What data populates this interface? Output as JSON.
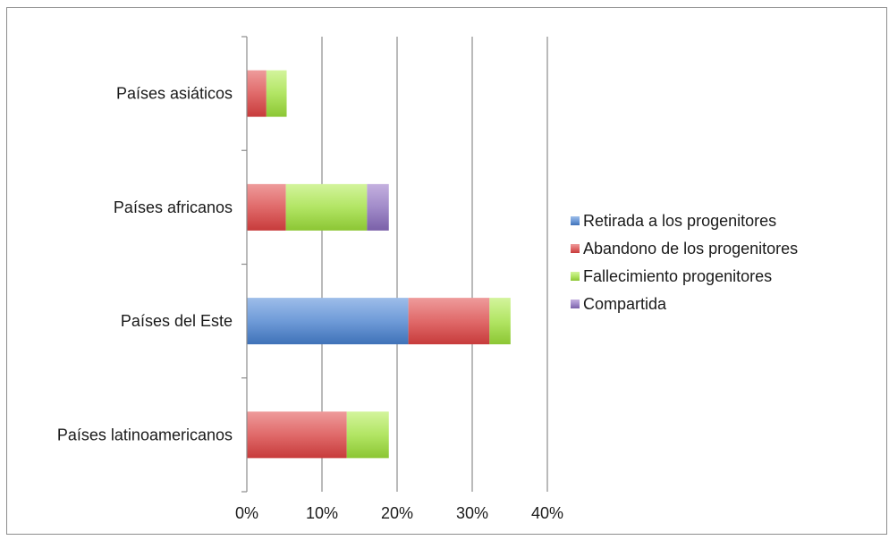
{
  "chart_data": {
    "type": "bar",
    "orientation": "horizontal",
    "stacked": true,
    "categories": [
      "Países asiáticos",
      "Países africanos",
      "Países del Este",
      "Países latinoamericanos"
    ],
    "series": [
      {
        "name": "Retirada a los progenitores",
        "color": "#4a7ebf",
        "values": [
          0,
          0,
          21.5,
          0
        ]
      },
      {
        "name": "Abandono de los progenitores",
        "color": "#d94a4a",
        "values": [
          2.6,
          5.2,
          10.8,
          13.3
        ]
      },
      {
        "name": "Fallecimiento progenitores",
        "color": "#9acd3a",
        "values": [
          2.7,
          10.8,
          2.8,
          5.6
        ]
      },
      {
        "name": "Compartida",
        "color": "#8064a2",
        "values": [
          0,
          2.9,
          0,
          0
        ]
      }
    ],
    "xticks": [
      "0%",
      "10%",
      "20%",
      "30%",
      "40%"
    ],
    "xlim": [
      0,
      40
    ],
    "grid": true,
    "legend_position": "right"
  }
}
